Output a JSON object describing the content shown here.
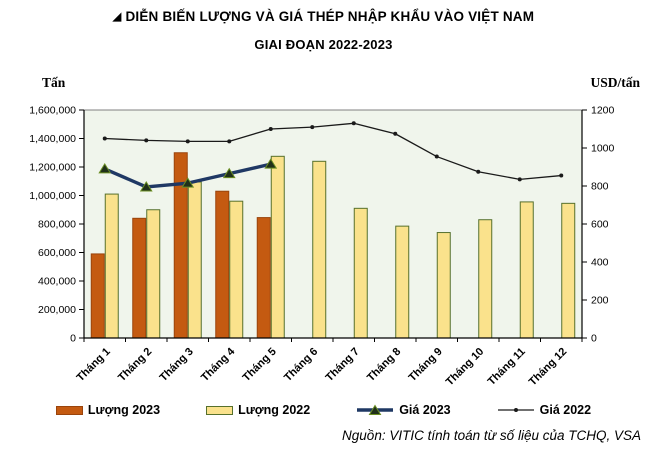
{
  "title": {
    "marker": "◢",
    "line1": "DIỄN BIẾN LƯỢNG VÀ GIÁ THÉP NHẬP KHẨU VÀO VIỆT NAM",
    "line2": "GIAI ĐOẠN 2022-2023"
  },
  "source_note": "Nguồn: VITIC tính toán từ số liệu của TCHQ, VSA",
  "chart_data": {
    "type": "combo-bar-line",
    "categories": [
      "Tháng 1",
      "Tháng 2",
      "Tháng 3",
      "Tháng 4",
      "Tháng 5",
      "Tháng 6",
      "Tháng 7",
      "Tháng 8",
      "Tháng 9",
      "Tháng 10",
      "Tháng 11",
      "Tháng 12"
    ],
    "left_axis": {
      "unit": "Tấn",
      "min": 0,
      "max": 1600000,
      "step": 200000
    },
    "right_axis": {
      "unit": "USD/tấn",
      "min": 0,
      "max": 1200,
      "step": 200
    },
    "grid": false,
    "legend_position": "bottom",
    "plot_background": "#F0F5EC",
    "series": [
      {
        "name": "Lượng 2023",
        "type": "bar",
        "axis": "left",
        "color": "#C45A11",
        "border": "#9A440C",
        "values": [
          590000,
          840000,
          1300000,
          1030000,
          845000,
          null,
          null,
          null,
          null,
          null,
          null,
          null
        ]
      },
      {
        "name": "Lượng 2022",
        "type": "bar",
        "axis": "left",
        "color": "#FAE28C",
        "border": "#56702C",
        "values": [
          1010000,
          900000,
          1095000,
          960000,
          1275000,
          1240000,
          910000,
          785000,
          740000,
          830000,
          955000,
          945000
        ]
      },
      {
        "name": "Giá 2023",
        "type": "line",
        "axis": "right",
        "color": "#1F3864",
        "marker": "triangle",
        "marker_color": "#20301A",
        "marker_border": "#6B8E23",
        "values": [
          890,
          795,
          815,
          865,
          915,
          null,
          null,
          null,
          null,
          null,
          null,
          null
        ]
      },
      {
        "name": "Giá 2022",
        "type": "line",
        "axis": "right",
        "color": "#1A1A1A",
        "marker": "dot",
        "marker_color": "#1A1A1A",
        "values": [
          1050,
          1040,
          1035,
          1035,
          1100,
          1110,
          1130,
          1075,
          955,
          875,
          835,
          855
        ]
      }
    ]
  }
}
